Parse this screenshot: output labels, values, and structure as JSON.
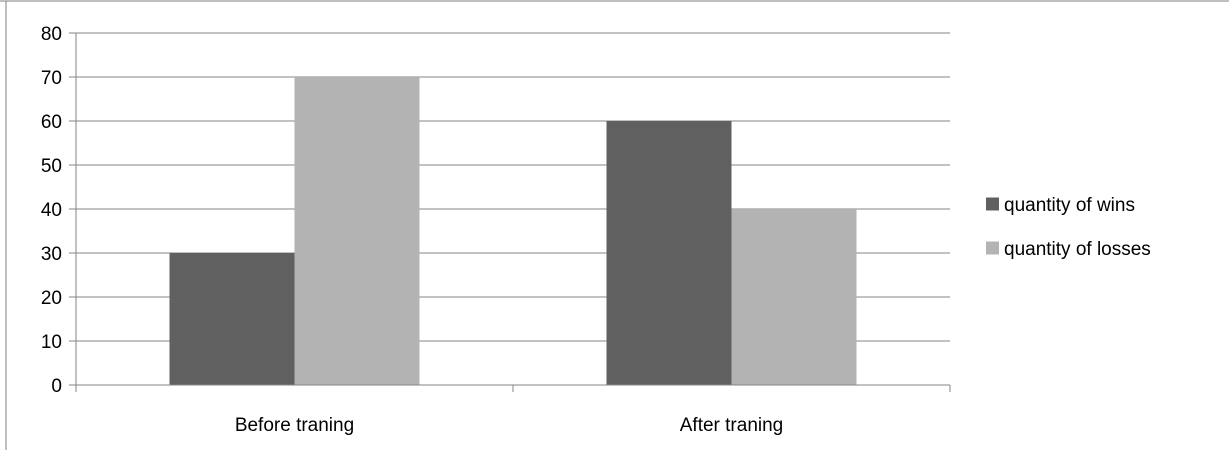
{
  "chart_data": {
    "type": "bar",
    "categories": [
      "Before traning",
      "After traning"
    ],
    "series": [
      {
        "name": "quantity of wins",
        "values": [
          30,
          60
        ],
        "color": "#606060"
      },
      {
        "name": "quantity of losses",
        "values": [
          70,
          40
        ],
        "color": "#b3b3b3"
      }
    ],
    "ylim": [
      0,
      80
    ],
    "yticks": [
      0,
      10,
      20,
      30,
      40,
      50,
      60,
      70,
      80
    ],
    "grid": true,
    "legend_position": "right"
  }
}
